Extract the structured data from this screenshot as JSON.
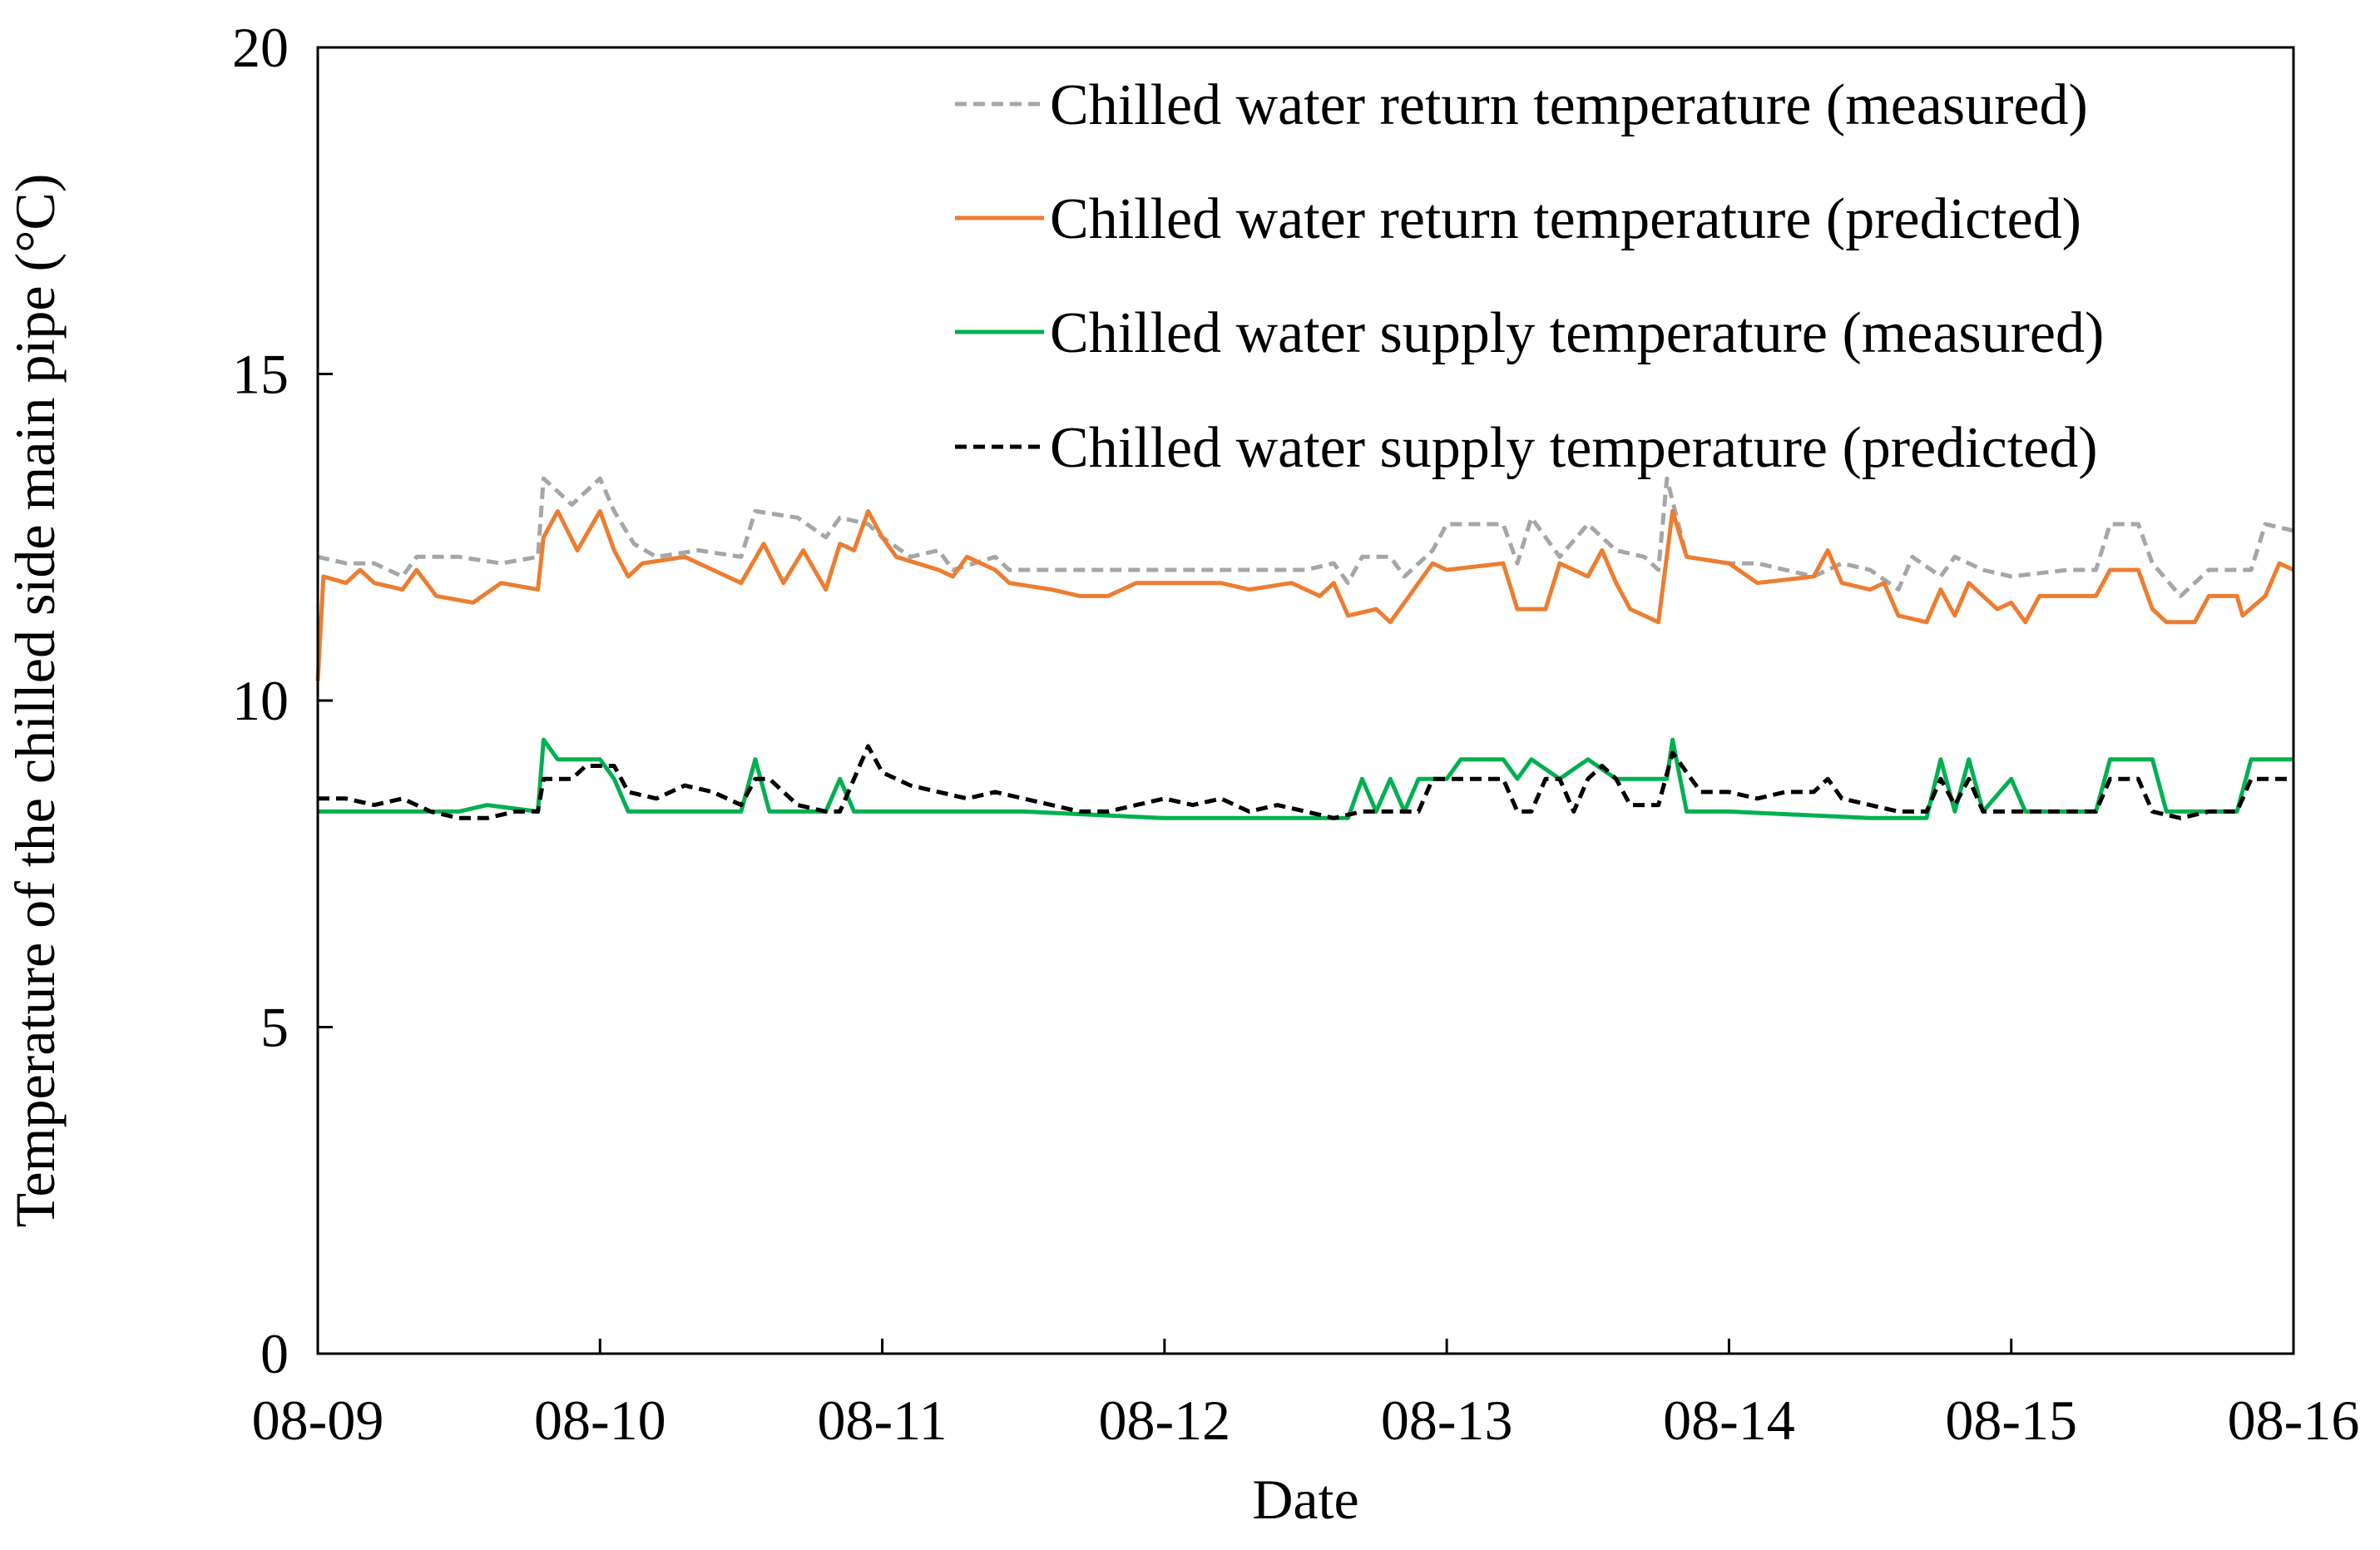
{
  "chart_data": {
    "type": "line",
    "title": "",
    "xlabel": "Date",
    "ylabel": "Temperature of the chilled side main pipe (°C)",
    "xlim": [
      0,
      7
    ],
    "ylim": [
      0,
      20
    ],
    "x_tick_labels": [
      "08-09",
      "08-10",
      "08-11",
      "08-12",
      "08-13",
      "08-14",
      "08-15",
      "08-16"
    ],
    "y_tick_labels": [
      "0",
      "5",
      "10",
      "15",
      "20"
    ],
    "legend_position": "top-right",
    "series": [
      {
        "name": "Chilled water return temperature (measured)",
        "color": "#a6a6a6",
        "style": "dashed",
        "points": [
          [
            0,
            12.2
          ],
          [
            0.1,
            12.1
          ],
          [
            0.2,
            12.1
          ],
          [
            0.3,
            11.9
          ],
          [
            0.35,
            12.2
          ],
          [
            0.5,
            12.2
          ],
          [
            0.65,
            12.1
          ],
          [
            0.78,
            12.2
          ],
          [
            0.8,
            13.4
          ],
          [
            0.9,
            13.0
          ],
          [
            1.0,
            13.4
          ],
          [
            1.05,
            12.9
          ],
          [
            1.12,
            12.4
          ],
          [
            1.2,
            12.2
          ],
          [
            1.35,
            12.3
          ],
          [
            1.5,
            12.2
          ],
          [
            1.55,
            12.9
          ],
          [
            1.7,
            12.8
          ],
          [
            1.8,
            12.5
          ],
          [
            1.85,
            12.8
          ],
          [
            1.95,
            12.7
          ],
          [
            2.0,
            12.5
          ],
          [
            2.1,
            12.2
          ],
          [
            2.2,
            12.3
          ],
          [
            2.25,
            12.0
          ],
          [
            2.4,
            12.2
          ],
          [
            2.45,
            12.0
          ],
          [
            2.8,
            12.0
          ],
          [
            3.2,
            12.0
          ],
          [
            3.5,
            12.0
          ],
          [
            3.6,
            12.1
          ],
          [
            3.65,
            11.8
          ],
          [
            3.7,
            12.2
          ],
          [
            3.8,
            12.2
          ],
          [
            3.85,
            11.9
          ],
          [
            3.95,
            12.3
          ],
          [
            4.0,
            12.7
          ],
          [
            4.2,
            12.7
          ],
          [
            4.25,
            12.1
          ],
          [
            4.3,
            12.8
          ],
          [
            4.4,
            12.2
          ],
          [
            4.5,
            12.7
          ],
          [
            4.6,
            12.3
          ],
          [
            4.7,
            12.2
          ],
          [
            4.75,
            12.0
          ],
          [
            4.78,
            13.4
          ],
          [
            4.85,
            12.2
          ],
          [
            5.0,
            12.1
          ],
          [
            5.1,
            12.1
          ],
          [
            5.3,
            11.9
          ],
          [
            5.4,
            12.1
          ],
          [
            5.5,
            12.0
          ],
          [
            5.6,
            11.7
          ],
          [
            5.65,
            12.2
          ],
          [
            5.75,
            11.9
          ],
          [
            5.8,
            12.2
          ],
          [
            5.9,
            12.0
          ],
          [
            6.0,
            11.9
          ],
          [
            6.2,
            12.0
          ],
          [
            6.3,
            12.0
          ],
          [
            6.35,
            12.7
          ],
          [
            6.45,
            12.7
          ],
          [
            6.5,
            12.1
          ],
          [
            6.6,
            11.6
          ],
          [
            6.7,
            12.0
          ],
          [
            6.85,
            12.0
          ],
          [
            6.9,
            12.7
          ],
          [
            7.0,
            12.6
          ]
        ]
      },
      {
        "name": "Chilled water return temperature (predicted)",
        "color": "#ed7d31",
        "style": "solid",
        "points": [
          [
            0,
            10.3
          ],
          [
            0.02,
            11.9
          ],
          [
            0.1,
            11.8
          ],
          [
            0.15,
            12.0
          ],
          [
            0.2,
            11.8
          ],
          [
            0.3,
            11.7
          ],
          [
            0.35,
            12.0
          ],
          [
            0.42,
            11.6
          ],
          [
            0.55,
            11.5
          ],
          [
            0.65,
            11.8
          ],
          [
            0.78,
            11.7
          ],
          [
            0.8,
            12.5
          ],
          [
            0.85,
            12.9
          ],
          [
            0.92,
            12.3
          ],
          [
            1.0,
            12.9
          ],
          [
            1.05,
            12.3
          ],
          [
            1.1,
            11.9
          ],
          [
            1.15,
            12.1
          ],
          [
            1.3,
            12.2
          ],
          [
            1.4,
            12.0
          ],
          [
            1.5,
            11.8
          ],
          [
            1.58,
            12.4
          ],
          [
            1.65,
            11.8
          ],
          [
            1.72,
            12.3
          ],
          [
            1.8,
            11.7
          ],
          [
            1.85,
            12.4
          ],
          [
            1.9,
            12.3
          ],
          [
            1.95,
            12.9
          ],
          [
            2.0,
            12.5
          ],
          [
            2.05,
            12.2
          ],
          [
            2.2,
            12.0
          ],
          [
            2.25,
            11.9
          ],
          [
            2.3,
            12.2
          ],
          [
            2.4,
            12.0
          ],
          [
            2.45,
            11.8
          ],
          [
            2.6,
            11.7
          ],
          [
            2.7,
            11.6
          ],
          [
            2.8,
            11.6
          ],
          [
            2.9,
            11.8
          ],
          [
            3.2,
            11.8
          ],
          [
            3.3,
            11.7
          ],
          [
            3.45,
            11.8
          ],
          [
            3.55,
            11.6
          ],
          [
            3.6,
            11.8
          ],
          [
            3.65,
            11.3
          ],
          [
            3.75,
            11.4
          ],
          [
            3.8,
            11.2
          ],
          [
            3.85,
            11.5
          ],
          [
            3.9,
            11.8
          ],
          [
            3.95,
            12.1
          ],
          [
            4.0,
            12.0
          ],
          [
            4.2,
            12.1
          ],
          [
            4.25,
            11.4
          ],
          [
            4.35,
            11.4
          ],
          [
            4.4,
            12.1
          ],
          [
            4.5,
            11.9
          ],
          [
            4.55,
            12.3
          ],
          [
            4.6,
            11.8
          ],
          [
            4.65,
            11.4
          ],
          [
            4.75,
            11.2
          ],
          [
            4.8,
            12.9
          ],
          [
            4.85,
            12.2
          ],
          [
            5.0,
            12.1
          ],
          [
            5.1,
            11.8
          ],
          [
            5.3,
            11.9
          ],
          [
            5.35,
            12.3
          ],
          [
            5.4,
            11.8
          ],
          [
            5.5,
            11.7
          ],
          [
            5.55,
            11.8
          ],
          [
            5.6,
            11.3
          ],
          [
            5.7,
            11.2
          ],
          [
            5.75,
            11.7
          ],
          [
            5.8,
            11.3
          ],
          [
            5.85,
            11.8
          ],
          [
            5.9,
            11.6
          ],
          [
            5.95,
            11.4
          ],
          [
            6.0,
            11.5
          ],
          [
            6.05,
            11.2
          ],
          [
            6.1,
            11.6
          ],
          [
            6.3,
            11.6
          ],
          [
            6.35,
            12.0
          ],
          [
            6.45,
            12.0
          ],
          [
            6.5,
            11.4
          ],
          [
            6.55,
            11.2
          ],
          [
            6.65,
            11.2
          ],
          [
            6.7,
            11.6
          ],
          [
            6.8,
            11.6
          ],
          [
            6.82,
            11.3
          ],
          [
            6.9,
            11.6
          ],
          [
            6.95,
            12.1
          ],
          [
            7.0,
            12.0
          ]
        ]
      },
      {
        "name": "Chilled water supply temperature (measured)",
        "color": "#00b050",
        "style": "solid",
        "points": [
          [
            0,
            8.3
          ],
          [
            0.5,
            8.3
          ],
          [
            0.6,
            8.4
          ],
          [
            0.78,
            8.3
          ],
          [
            0.8,
            9.4
          ],
          [
            0.85,
            9.1
          ],
          [
            1.0,
            9.1
          ],
          [
            1.05,
            8.8
          ],
          [
            1.1,
            8.3
          ],
          [
            1.5,
            8.3
          ],
          [
            1.55,
            9.1
          ],
          [
            1.6,
            8.3
          ],
          [
            1.8,
            8.3
          ],
          [
            1.85,
            8.8
          ],
          [
            1.9,
            8.3
          ],
          [
            2.5,
            8.3
          ],
          [
            3.0,
            8.2
          ],
          [
            3.4,
            8.2
          ],
          [
            3.6,
            8.2
          ],
          [
            3.65,
            8.2
          ],
          [
            3.7,
            8.8
          ],
          [
            3.75,
            8.3
          ],
          [
            3.8,
            8.8
          ],
          [
            3.85,
            8.3
          ],
          [
            3.9,
            8.8
          ],
          [
            4.0,
            8.8
          ],
          [
            4.05,
            9.1
          ],
          [
            4.2,
            9.1
          ],
          [
            4.25,
            8.8
          ],
          [
            4.3,
            9.1
          ],
          [
            4.4,
            8.8
          ],
          [
            4.5,
            9.1
          ],
          [
            4.6,
            8.8
          ],
          [
            4.78,
            8.8
          ],
          [
            4.8,
            9.4
          ],
          [
            4.85,
            8.3
          ],
          [
            5.0,
            8.3
          ],
          [
            5.5,
            8.2
          ],
          [
            5.7,
            8.2
          ],
          [
            5.75,
            9.1
          ],
          [
            5.8,
            8.3
          ],
          [
            5.85,
            9.1
          ],
          [
            5.9,
            8.3
          ],
          [
            6.0,
            8.8
          ],
          [
            6.05,
            8.3
          ],
          [
            6.3,
            8.3
          ],
          [
            6.35,
            9.1
          ],
          [
            6.5,
            9.1
          ],
          [
            6.55,
            8.3
          ],
          [
            6.8,
            8.3
          ],
          [
            6.85,
            9.1
          ],
          [
            7.0,
            9.1
          ]
        ]
      },
      {
        "name": "Chilled water supply temperature (predicted)",
        "color": "#000000",
        "style": "dashed",
        "points": [
          [
            0,
            8.5
          ],
          [
            0.1,
            8.5
          ],
          [
            0.2,
            8.4
          ],
          [
            0.3,
            8.5
          ],
          [
            0.4,
            8.3
          ],
          [
            0.5,
            8.2
          ],
          [
            0.6,
            8.2
          ],
          [
            0.7,
            8.3
          ],
          [
            0.78,
            8.3
          ],
          [
            0.8,
            8.8
          ],
          [
            0.9,
            8.8
          ],
          [
            0.95,
            9.0
          ],
          [
            1.05,
            9.0
          ],
          [
            1.1,
            8.6
          ],
          [
            1.2,
            8.5
          ],
          [
            1.3,
            8.7
          ],
          [
            1.4,
            8.6
          ],
          [
            1.5,
            8.4
          ],
          [
            1.55,
            8.8
          ],
          [
            1.6,
            8.8
          ],
          [
            1.7,
            8.4
          ],
          [
            1.8,
            8.3
          ],
          [
            1.85,
            8.3
          ],
          [
            1.9,
            8.8
          ],
          [
            1.95,
            9.3
          ],
          [
            2.0,
            8.9
          ],
          [
            2.1,
            8.7
          ],
          [
            2.2,
            8.6
          ],
          [
            2.3,
            8.5
          ],
          [
            2.4,
            8.6
          ],
          [
            2.5,
            8.5
          ],
          [
            2.6,
            8.4
          ],
          [
            2.7,
            8.3
          ],
          [
            2.8,
            8.3
          ],
          [
            2.9,
            8.4
          ],
          [
            3.0,
            8.5
          ],
          [
            3.1,
            8.4
          ],
          [
            3.2,
            8.5
          ],
          [
            3.3,
            8.3
          ],
          [
            3.4,
            8.4
          ],
          [
            3.5,
            8.3
          ],
          [
            3.6,
            8.2
          ],
          [
            3.7,
            8.3
          ],
          [
            3.8,
            8.3
          ],
          [
            3.9,
            8.3
          ],
          [
            3.95,
            8.8
          ],
          [
            4.2,
            8.8
          ],
          [
            4.25,
            8.3
          ],
          [
            4.3,
            8.3
          ],
          [
            4.35,
            8.8
          ],
          [
            4.4,
            8.8
          ],
          [
            4.45,
            8.3
          ],
          [
            4.5,
            8.8
          ],
          [
            4.55,
            9.0
          ],
          [
            4.6,
            8.8
          ],
          [
            4.65,
            8.4
          ],
          [
            4.75,
            8.4
          ],
          [
            4.8,
            9.2
          ],
          [
            4.85,
            8.9
          ],
          [
            4.9,
            8.6
          ],
          [
            5.0,
            8.6
          ],
          [
            5.1,
            8.5
          ],
          [
            5.2,
            8.6
          ],
          [
            5.3,
            8.6
          ],
          [
            5.35,
            8.8
          ],
          [
            5.4,
            8.5
          ],
          [
            5.5,
            8.4
          ],
          [
            5.6,
            8.3
          ],
          [
            5.7,
            8.3
          ],
          [
            5.75,
            8.8
          ],
          [
            5.8,
            8.4
          ],
          [
            5.85,
            8.8
          ],
          [
            5.9,
            8.3
          ],
          [
            6.0,
            8.3
          ],
          [
            6.1,
            8.3
          ],
          [
            6.2,
            8.3
          ],
          [
            6.3,
            8.3
          ],
          [
            6.35,
            8.8
          ],
          [
            6.45,
            8.8
          ],
          [
            6.5,
            8.3
          ],
          [
            6.6,
            8.2
          ],
          [
            6.7,
            8.3
          ],
          [
            6.8,
            8.3
          ],
          [
            6.85,
            8.8
          ],
          [
            7.0,
            8.8
          ]
        ]
      }
    ]
  }
}
